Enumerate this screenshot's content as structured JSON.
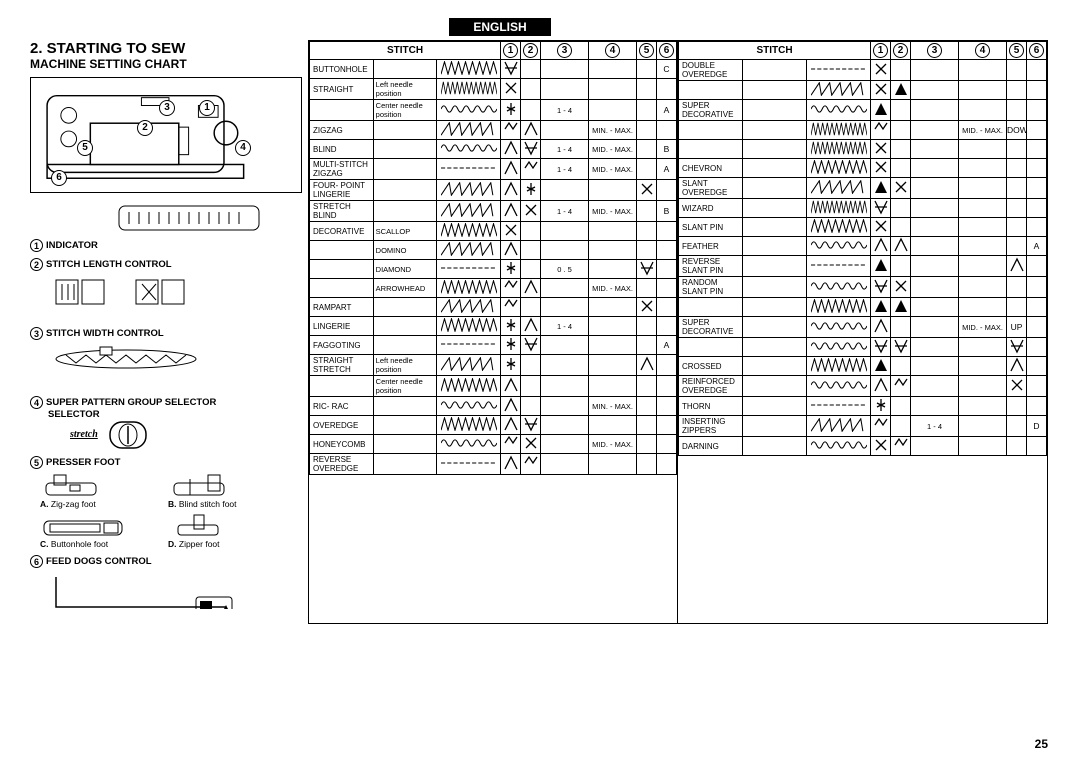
{
  "lang_label": "ENGLISH",
  "section_title": "2. STARTING TO SEW",
  "subtitle": "MACHINE SETTING CHART",
  "page_number": "25",
  "machine_labels": [
    "1",
    "2",
    "3",
    "4",
    "5",
    "6"
  ],
  "legend": [
    {
      "n": "1",
      "label": "INDICATOR"
    },
    {
      "n": "2",
      "label": "STITCH LENGTH CONTROL"
    },
    {
      "n": "3",
      "label": "STITCH WIDTH CONTROL"
    },
    {
      "n": "4",
      "label": "SUPER PATTERN GROUP SELECTOR",
      "sub": "stretch"
    },
    {
      "n": "5",
      "label": "PRESSER FOOT"
    },
    {
      "n": "6",
      "label": "FEED DOGS CONTROL"
    }
  ],
  "feet": [
    {
      "id": "A.",
      "label": "Zig-zag foot"
    },
    {
      "id": "B.",
      "label": "Blind stitch foot"
    },
    {
      "id": "C.",
      "label": "Buttonhole foot"
    },
    {
      "id": "D.",
      "label": "Zipper foot"
    }
  ],
  "col_header": "STITCH",
  "col_nums": [
    "1",
    "2",
    "3",
    "4",
    "5",
    "6"
  ],
  "left_rows": [
    {
      "name": "BUTTONHOLE",
      "sub": "",
      "c3": "",
      "c4": "",
      "c6": "C"
    },
    {
      "name": "STRAIGHT",
      "sub": "Left needle position",
      "span": true
    },
    {
      "name": "",
      "sub": "Center needle position",
      "c3": "1 - 4",
      "c4": "",
      "c6": "A"
    },
    {
      "name": "ZIGZAG",
      "sub": "",
      "c3": "",
      "c4": "MIN. - MAX.",
      "c6": ""
    },
    {
      "name": "BLIND",
      "sub": "",
      "c3": "1 - 4",
      "c4": "MID. - MAX.",
      "c6": "B"
    },
    {
      "name": "MULTI-STITCH ZIGZAG",
      "sub": "",
      "c3": "1 - 4",
      "c4": "MID. - MAX.",
      "c6": "A"
    },
    {
      "name": "FOUR- POINT LINGERIE",
      "sub": "",
      "c3": "",
      "c4": "",
      "c6": ""
    },
    {
      "name": "STRETCH BLIND",
      "sub": "",
      "c3": "1 - 4",
      "c4": "MID. - MAX.",
      "c6": "B"
    },
    {
      "name": "DECORATIVE",
      "sub": "SCALLOP",
      "span": true
    },
    {
      "name": "",
      "sub": "DOMINO",
      "span": true
    },
    {
      "name": "",
      "sub": "DIAMOND",
      "c3": "0 . 5",
      "c4": "",
      "span": true
    },
    {
      "name": "",
      "sub": "ARROWHEAD",
      "c3": "",
      "c4": "MID. - MAX.",
      "c6": ""
    },
    {
      "name": "RAMPART",
      "sub": "",
      "c3": "",
      "c4": "",
      "c6": ""
    },
    {
      "name": "LINGERIE",
      "sub": "",
      "c3": "1 - 4",
      "c4": "",
      "c6": ""
    },
    {
      "name": "FAGGOTING",
      "sub": "",
      "c3": "",
      "c4": "",
      "c6": "A"
    },
    {
      "name": "STRAIGHT STRETCH",
      "sub": "Left needle position",
      "span": true
    },
    {
      "name": "",
      "sub": "Center needle position",
      "c3": "",
      "c4": "",
      "c6": ""
    },
    {
      "name": "RIC- RAC",
      "sub": "",
      "c3": "",
      "c4": "MIN. - MAX.",
      "c6": ""
    },
    {
      "name": "OVEREDGE",
      "sub": "",
      "c3": "",
      "c4": "",
      "c6": ""
    },
    {
      "name": "HONEYCOMB",
      "sub": "",
      "c3": "",
      "c4": "MID. - MAX.",
      "c6": ""
    },
    {
      "name": "REVERSE OVEREDGE",
      "sub": "",
      "c3": "",
      "c4": "",
      "c6": ""
    }
  ],
  "right_rows": [
    {
      "name": "DOUBLE OVEREDGE",
      "sub": ""
    },
    {
      "name": "",
      "sub": ""
    },
    {
      "name": "SUPER DECORATIVE",
      "sub": ""
    },
    {
      "name": "",
      "sub": "",
      "c4": "MID. - MAX.",
      "c5": "DOWN"
    },
    {
      "name": "",
      "sub": ""
    },
    {
      "name": "CHEVRON",
      "sub": ""
    },
    {
      "name": "SLANT OVEREDGE",
      "sub": ""
    },
    {
      "name": "WIZARD",
      "sub": ""
    },
    {
      "name": "SLANT PIN",
      "sub": ""
    },
    {
      "name": "FEATHER",
      "sub": "",
      "c6": "A"
    },
    {
      "name": "REVERSE SLANT PIN",
      "sub": ""
    },
    {
      "name": "RANDOM SLANT PIN",
      "sub": ""
    },
    {
      "name": "",
      "sub": ""
    },
    {
      "name": "SUPER DECORATIVE",
      "sub": "",
      "c4": "MID. - MAX.",
      "c5": "UP"
    },
    {
      "name": "",
      "sub": ""
    },
    {
      "name": "CROSSED",
      "sub": ""
    },
    {
      "name": "REINFORCED OVEREDGE",
      "sub": ""
    },
    {
      "name": "THORN",
      "sub": ""
    },
    {
      "name": "INSERTING ZIPPERS",
      "sub": "",
      "c3": "1 - 4",
      "c6": "D"
    },
    {
      "name": "DARNING",
      "sub": ""
    }
  ]
}
